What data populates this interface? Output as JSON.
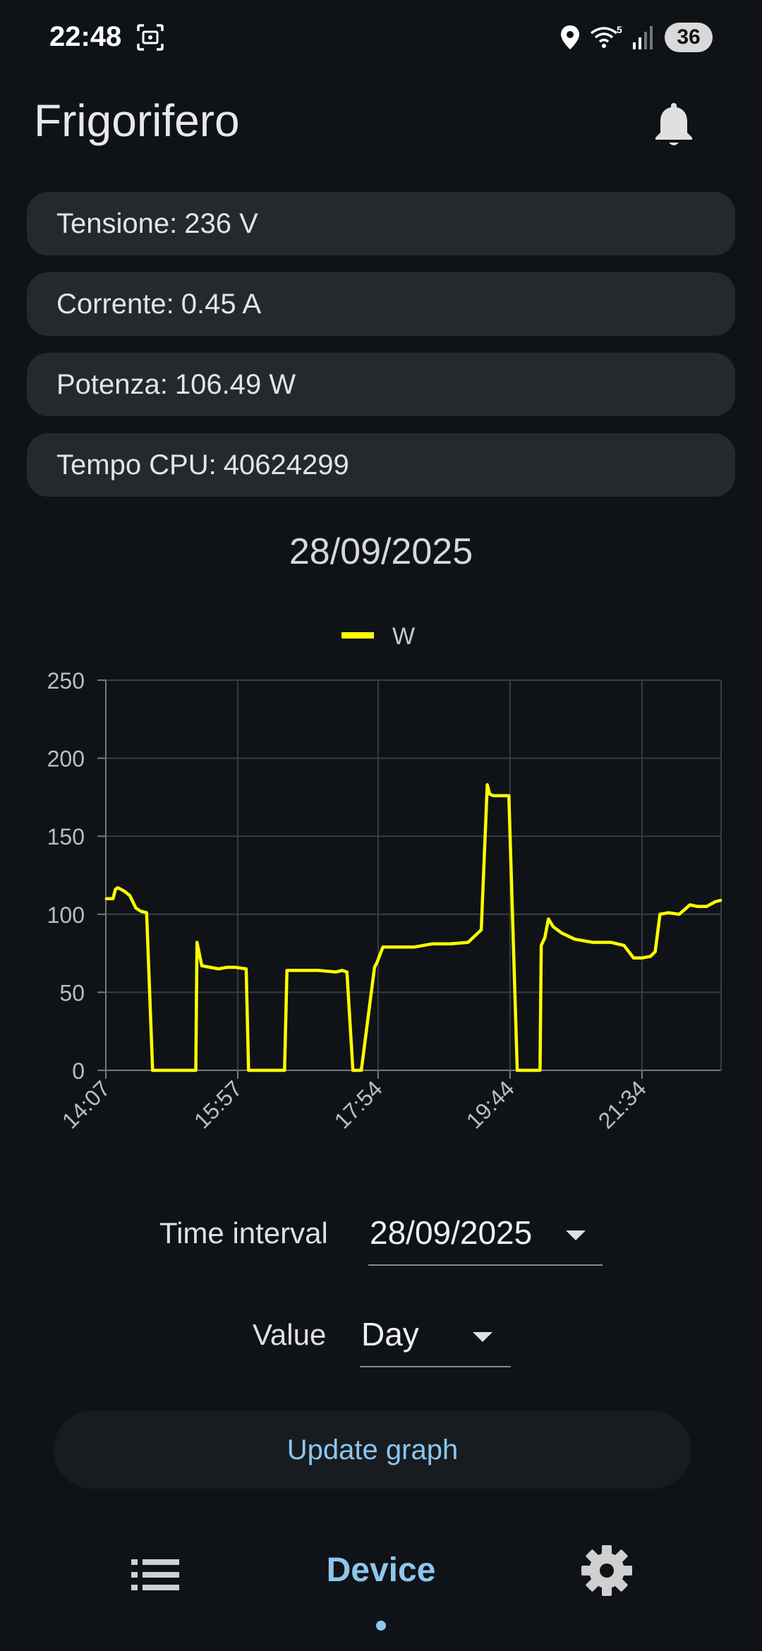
{
  "status_bar": {
    "time": "22:48",
    "battery": "36",
    "icons": [
      "screenshot-icon",
      "location-icon",
      "wifi-icon",
      "signal-icon",
      "battery-icon"
    ]
  },
  "header": {
    "title": "Frigorifero",
    "bell_icon": "bell-icon"
  },
  "cards": [
    {
      "label": "Tensione:",
      "value": "236 V"
    },
    {
      "label": "Corrente:",
      "value": "0.45 A"
    },
    {
      "label": "Potenza:",
      "value": "106.49 W"
    },
    {
      "label": "Tempo CPU:",
      "value": "40624299"
    }
  ],
  "chart_date": "28/09/2025",
  "chart_data": {
    "type": "line",
    "title": "28/09/2025",
    "xlabel": "",
    "ylabel": "",
    "x_ticks": [
      "14:07",
      "15:57",
      "17:54",
      "19:44",
      "21:34"
    ],
    "y_ticks": [
      0,
      50,
      100,
      150,
      200,
      250
    ],
    "ylim": [
      0,
      250
    ],
    "grid": true,
    "legend_position": "top-center",
    "series": [
      {
        "name": "W",
        "color": "#ffff00",
        "x": [
          "14:07",
          "14:13",
          "14:15",
          "14:17",
          "14:22",
          "14:27",
          "14:32",
          "14:36",
          "14:41",
          "14:46",
          "14:48",
          "15:22",
          "15:23",
          "15:27",
          "15:34",
          "15:41",
          "15:48",
          "15:55",
          "16:04",
          "16:06",
          "16:36",
          "16:38",
          "16:49",
          "17:04",
          "17:19",
          "17:24",
          "17:28",
          "17:33",
          "17:40",
          "17:51",
          "17:53",
          "17:58",
          "18:09",
          "18:24",
          "18:39",
          "18:54",
          "19:09",
          "19:20",
          "19:25",
          "19:27",
          "19:30",
          "19:36",
          "19:43",
          "19:50",
          "19:57",
          "19:59",
          "20:09",
          "20:10",
          "20:13",
          "20:16",
          "20:20",
          "20:27",
          "20:38",
          "20:53",
          "21:08",
          "21:19",
          "21:27",
          "21:30",
          "21:34",
          "21:41",
          "21:45",
          "21:49",
          "21:56",
          "22:05",
          "22:14",
          "22:20",
          "22:28",
          "22:35",
          "22:40"
        ],
        "values": [
          110,
          110,
          116,
          117,
          115,
          112,
          104,
          102,
          101,
          0,
          0,
          0,
          82,
          67,
          66,
          65,
          66,
          66,
          65,
          0,
          0,
          64,
          64,
          64,
          63,
          64,
          63,
          0,
          0,
          66,
          69,
          79,
          79,
          79,
          81,
          81,
          82,
          90,
          183,
          177,
          176,
          176,
          176,
          0,
          0,
          0,
          0,
          80,
          85,
          97,
          92,
          88,
          84,
          82,
          82,
          80,
          72,
          72,
          72,
          73,
          76,
          100,
          101,
          100,
          106,
          105,
          105,
          108,
          109
        ]
      }
    ]
  },
  "controls": {
    "time_interval_label": "Time interval",
    "time_interval_value": "28/09/2025",
    "value_label": "Value",
    "value_value": "Day",
    "update_button": "Update graph"
  },
  "bottom_nav": {
    "list_icon": "list-icon",
    "device_label": "Device",
    "settings_icon": "gear-icon"
  }
}
